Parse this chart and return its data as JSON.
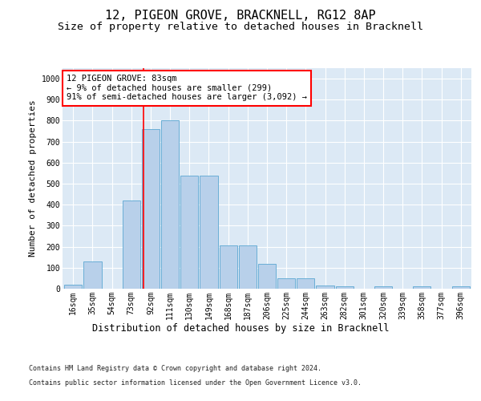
{
  "title": "12, PIGEON GROVE, BRACKNELL, RG12 8AP",
  "subtitle": "Size of property relative to detached houses in Bracknell",
  "xlabel": "Distribution of detached houses by size in Bracknell",
  "ylabel": "Number of detached properties",
  "footer_line1": "Contains HM Land Registry data © Crown copyright and database right 2024.",
  "footer_line2": "Contains public sector information licensed under the Open Government Licence v3.0.",
  "bin_labels": [
    "16sqm",
    "35sqm",
    "54sqm",
    "73sqm",
    "92sqm",
    "111sqm",
    "130sqm",
    "149sqm",
    "168sqm",
    "187sqm",
    "206sqm",
    "225sqm",
    "244sqm",
    "263sqm",
    "282sqm",
    "301sqm",
    "320sqm",
    "339sqm",
    "358sqm",
    "377sqm",
    "396sqm"
  ],
  "bar_values": [
    20,
    130,
    0,
    420,
    760,
    800,
    540,
    540,
    205,
    205,
    120,
    50,
    50,
    15,
    10,
    0,
    10,
    0,
    10,
    0,
    10
  ],
  "bar_color": "#b8d0ea",
  "bar_edge_color": "#6aaed6",
  "vline_x": 3.62,
  "vline_color": "red",
  "annotation_text": "12 PIGEON GROVE: 83sqm\n← 9% of detached houses are smaller (299)\n91% of semi-detached houses are larger (3,092) →",
  "annotation_box_color": "white",
  "annotation_box_edge_color": "red",
  "ylim": [
    0,
    1050
  ],
  "yticks": [
    0,
    100,
    200,
    300,
    400,
    500,
    600,
    700,
    800,
    900,
    1000
  ],
  "plot_bg_color": "#dce9f5",
  "title_fontsize": 11,
  "subtitle_fontsize": 9.5,
  "ylabel_fontsize": 8,
  "xlabel_fontsize": 8.5,
  "tick_fontsize": 7,
  "footer_fontsize": 6,
  "ann_fontsize": 7.5
}
